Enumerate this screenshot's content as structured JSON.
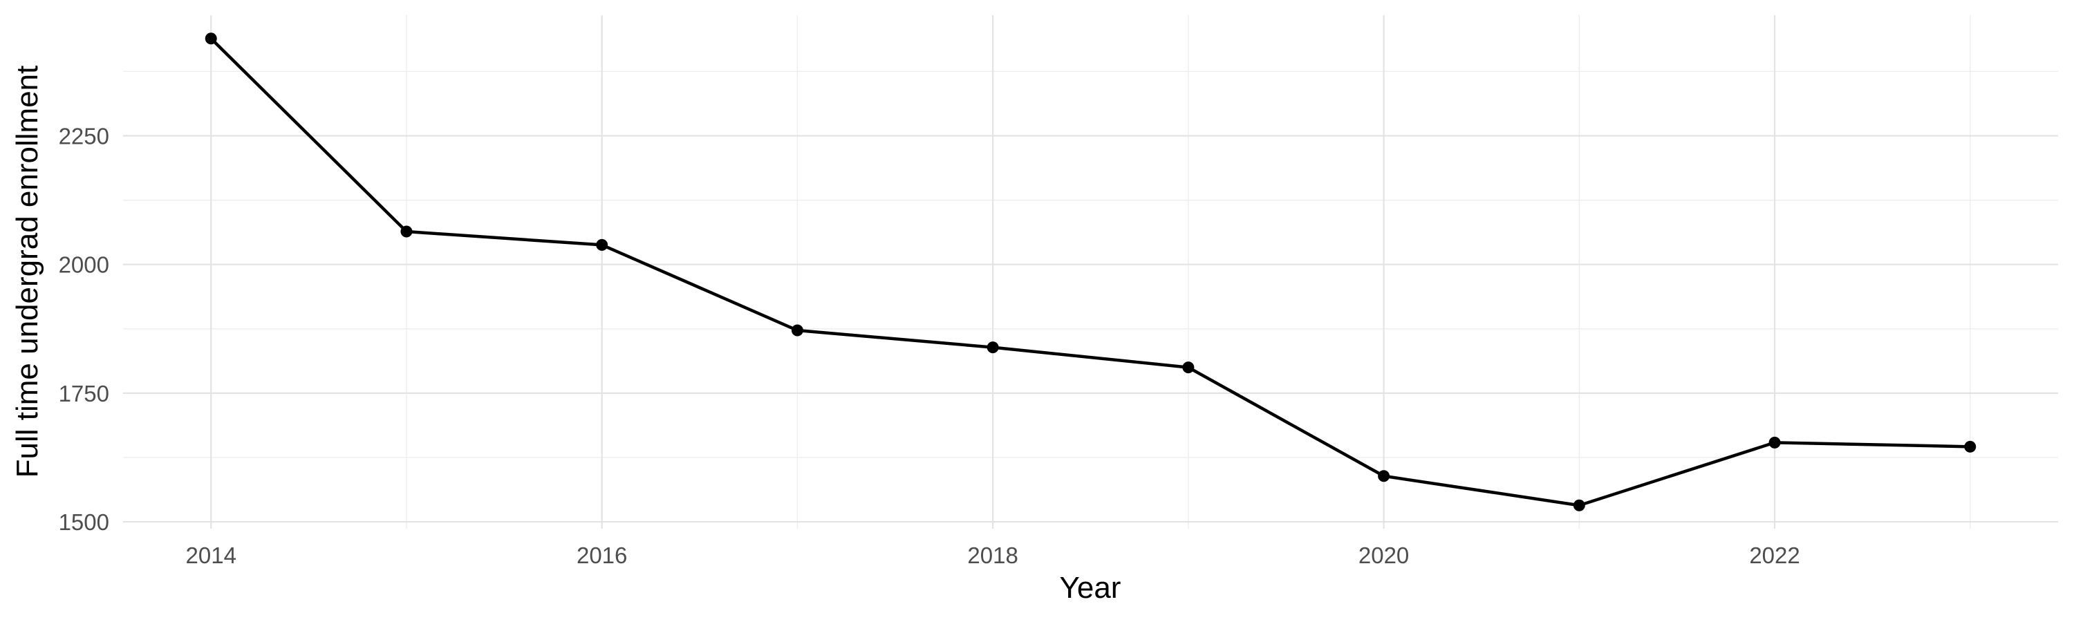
{
  "figure": {
    "background": "#FFFFFF"
  },
  "chart_data": {
    "type": "line",
    "title": "",
    "xlabel": "Year",
    "ylabel": "Full time undergrad enrollment",
    "x": [
      2014,
      2015,
      2016,
      2017,
      2018,
      2019,
      2020,
      2021,
      2022,
      2023
    ],
    "values": [
      2439,
      2064,
      2038,
      1872,
      1839,
      1800,
      1589,
      1532,
      1654,
      1646
    ],
    "series_name": "Full time undergrad enrollment",
    "x_ticks": [
      2014,
      2016,
      2018,
      2020,
      2022
    ],
    "x_minor_ticks": [
      2015,
      2017,
      2019,
      2021,
      2023
    ],
    "y_ticks": [
      1500,
      1750,
      2000,
      2250
    ],
    "y_minor_ticks": [
      1625,
      1875,
      2125,
      2375
    ],
    "xlim": [
      2013.55,
      2023.45
    ],
    "ylim": [
      1486.65,
      2484.35
    ],
    "grid": true,
    "legend": "none",
    "line_color": "#000000",
    "point_color": "#000000",
    "grid_major_color": "#E3E3E3",
    "grid_minor_color": "#EDEDED",
    "tick_label_color": "#4D4D4D",
    "axis_title_color": "#000000"
  }
}
